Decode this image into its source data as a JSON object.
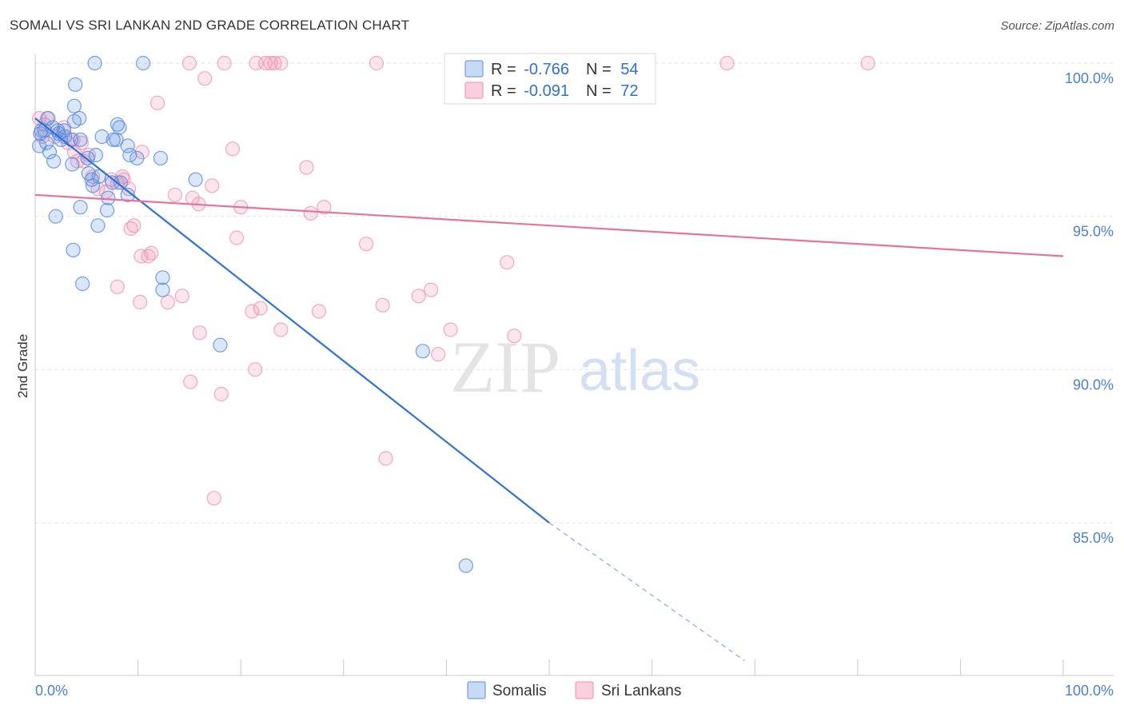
{
  "header": {
    "title": "SOMALI VS SRI LANKAN 2ND GRADE CORRELATION CHART",
    "source": "Source: ZipAtlas.com"
  },
  "watermark": {
    "zip": "ZIP",
    "atlas": "atlas"
  },
  "chart_data": {
    "type": "scatter",
    "ylabel": "2nd Grade",
    "xlim": [
      0,
      100
    ],
    "ylim": [
      80.5,
      100.7
    ],
    "x_tick_labels": [
      "0.0%",
      "100.0%"
    ],
    "y_ticks": [
      {
        "value": 100,
        "label": "100.0%"
      },
      {
        "value": 95,
        "label": "95.0%"
      },
      {
        "value": 90,
        "label": "90.0%"
      },
      {
        "value": 85,
        "label": "85.0%"
      }
    ],
    "grid": true,
    "legend_position": "top-center",
    "colors": {
      "somali": "#5b8fe0",
      "srilankan": "#f08cae",
      "somali_line": "#2f72d6",
      "srilankan_line": "#e6739c",
      "text_blue": "#2f6fd6"
    },
    "legend": {
      "somali": {
        "r_label": "R =",
        "r_value": "-0.766",
        "n_label": "N =",
        "n_value": "54"
      },
      "srilankan": {
        "r_label": "R =",
        "r_value": "-0.091",
        "n_label": "N =",
        "n_value": "72"
      }
    },
    "series": [
      {
        "name": "Somalis",
        "trend": {
          "x0": 0,
          "y0": 98.2,
          "x1": 50,
          "y1": 85.0,
          "dash_x1": 69,
          "dash_y1": 80.5
        },
        "points": [
          [
            1.2,
            98.2
          ],
          [
            0.9,
            97.8
          ],
          [
            1.7,
            97.9
          ],
          [
            2.3,
            97.7
          ],
          [
            0.4,
            97.3
          ],
          [
            0.6,
            97.8
          ],
          [
            1.4,
            97.1
          ],
          [
            1.8,
            96.8
          ],
          [
            3.6,
            96.7
          ],
          [
            3.5,
            97.5
          ],
          [
            2.8,
            97.8
          ],
          [
            2.2,
            97.8
          ],
          [
            2.5,
            97.5
          ],
          [
            3.8,
            98.1
          ],
          [
            4.3,
            98.2
          ],
          [
            3.8,
            98.6
          ],
          [
            3.9,
            99.3
          ],
          [
            5.8,
            100.0
          ],
          [
            10.5,
            100.0
          ],
          [
            8.2,
            97.9
          ],
          [
            8.0,
            98.0
          ],
          [
            6.5,
            97.6
          ],
          [
            7.6,
            97.5
          ],
          [
            7.9,
            97.5
          ],
          [
            9.0,
            97.3
          ],
          [
            9.2,
            97.0
          ],
          [
            9.9,
            96.9
          ],
          [
            12.2,
            96.9
          ],
          [
            5.1,
            96.9
          ],
          [
            5.2,
            96.4
          ],
          [
            5.5,
            96.2
          ],
          [
            5.6,
            96.0
          ],
          [
            7.5,
            96.1
          ],
          [
            7.1,
            95.6
          ],
          [
            8.3,
            96.1
          ],
          [
            9.0,
            95.7
          ],
          [
            4.4,
            95.3
          ],
          [
            2.0,
            95.0
          ],
          [
            7.0,
            95.2
          ],
          [
            6.1,
            94.7
          ],
          [
            3.7,
            93.9
          ],
          [
            4.6,
            92.8
          ],
          [
            12.4,
            93.0
          ],
          [
            12.4,
            92.6
          ],
          [
            15.6,
            96.2
          ],
          [
            18.0,
            90.8
          ],
          [
            37.7,
            90.6
          ],
          [
            41.9,
            83.6
          ],
          [
            0.5,
            97.7
          ],
          [
            1.1,
            97.4
          ],
          [
            2.9,
            97.6
          ],
          [
            4.4,
            97.5
          ],
          [
            5.9,
            97.0
          ],
          [
            6.2,
            96.3
          ]
        ]
      },
      {
        "name": "Sri Lankans",
        "trend": {
          "x0": 0,
          "y0": 95.7,
          "x1": 100,
          "y1": 93.7
        },
        "points": [
          [
            0.4,
            98.2
          ],
          [
            0.9,
            98.0
          ],
          [
            1.3,
            98.2
          ],
          [
            1.9,
            97.6
          ],
          [
            2.8,
            97.9
          ],
          [
            3.2,
            97.4
          ],
          [
            3.7,
            97.5
          ],
          [
            4.5,
            97.4
          ],
          [
            5.2,
            97.0
          ],
          [
            3.8,
            97.1
          ],
          [
            4.1,
            96.8
          ],
          [
            4.7,
            96.8
          ],
          [
            5.6,
            96.3
          ],
          [
            6.1,
            95.9
          ],
          [
            6.9,
            95.8
          ],
          [
            7.4,
            96.2
          ],
          [
            8.0,
            96.1
          ],
          [
            8.6,
            96.2
          ],
          [
            9.1,
            95.9
          ],
          [
            8.5,
            96.3
          ],
          [
            10.4,
            97.1
          ],
          [
            11.9,
            98.7
          ],
          [
            15.0,
            100.0
          ],
          [
            18.4,
            100.0
          ],
          [
            21.5,
            100.0
          ],
          [
            22.4,
            100.0
          ],
          [
            22.9,
            100.0
          ],
          [
            23.3,
            100.0
          ],
          [
            23.9,
            100.0
          ],
          [
            33.2,
            100.0
          ],
          [
            41.4,
            100.0
          ],
          [
            67.3,
            100.0
          ],
          [
            81.0,
            100.0
          ],
          [
            16.5,
            99.5
          ],
          [
            19.2,
            97.2
          ],
          [
            13.6,
            95.7
          ],
          [
            15.3,
            95.6
          ],
          [
            17.2,
            96.0
          ],
          [
            15.9,
            95.4
          ],
          [
            20.0,
            95.3
          ],
          [
            26.4,
            96.6
          ],
          [
            26.8,
            95.1
          ],
          [
            28.1,
            95.3
          ],
          [
            9.6,
            94.7
          ],
          [
            9.3,
            94.6
          ],
          [
            19.6,
            94.3
          ],
          [
            32.2,
            94.1
          ],
          [
            10.3,
            93.7
          ],
          [
            11.0,
            93.7
          ],
          [
            11.3,
            93.8
          ],
          [
            45.9,
            93.5
          ],
          [
            8.0,
            92.7
          ],
          [
            10.2,
            92.2
          ],
          [
            12.9,
            92.2
          ],
          [
            14.3,
            92.4
          ],
          [
            21.1,
            91.9
          ],
          [
            21.9,
            92.0
          ],
          [
            27.6,
            91.9
          ],
          [
            33.8,
            92.1
          ],
          [
            37.3,
            92.4
          ],
          [
            38.5,
            92.6
          ],
          [
            16.0,
            91.2
          ],
          [
            23.9,
            91.3
          ],
          [
            40.4,
            91.3
          ],
          [
            46.6,
            91.1
          ],
          [
            39.2,
            90.5
          ],
          [
            21.4,
            90.0
          ],
          [
            15.1,
            89.6
          ],
          [
            18.1,
            89.2
          ],
          [
            34.1,
            87.1
          ],
          [
            17.4,
            85.8
          ],
          [
            0.7,
            97.6
          ]
        ]
      }
    ]
  },
  "bottom_legend": {
    "somali_label": "Somalis",
    "srilankan_label": "Sri Lankans"
  }
}
